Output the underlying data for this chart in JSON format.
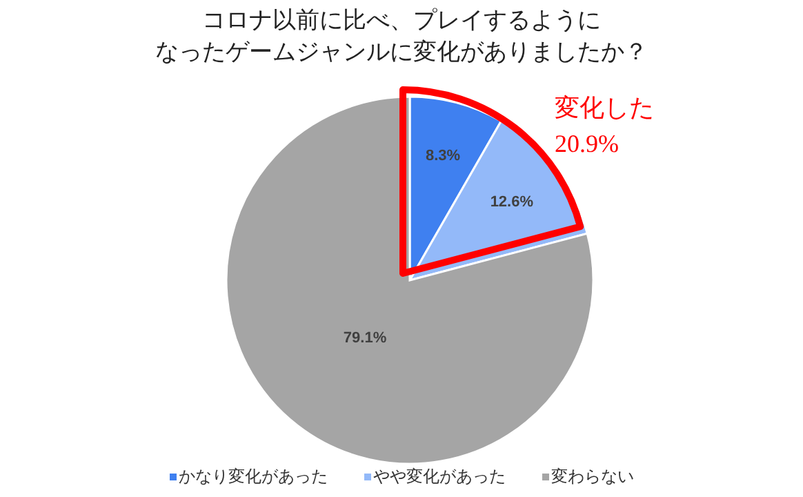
{
  "chart_data": {
    "type": "pie",
    "title": "コロナ以前に比べ、プレイするように",
    "subtitle": "なったゲームジャンルに変化がありましたか？",
    "categories": [
      "かなり変化があった",
      "やや変化があった",
      "変わらない"
    ],
    "values": [
      8.3,
      12.6,
      79.1
    ],
    "value_labels": [
      "8.3%",
      "12.6%",
      "79.1%"
    ],
    "colors": [
      "#3f80f0",
      "#93b9f9",
      "#a5a5a5"
    ],
    "legend": "bottom",
    "annotations": [
      "変化した",
      "20.9%"
    ]
  }
}
